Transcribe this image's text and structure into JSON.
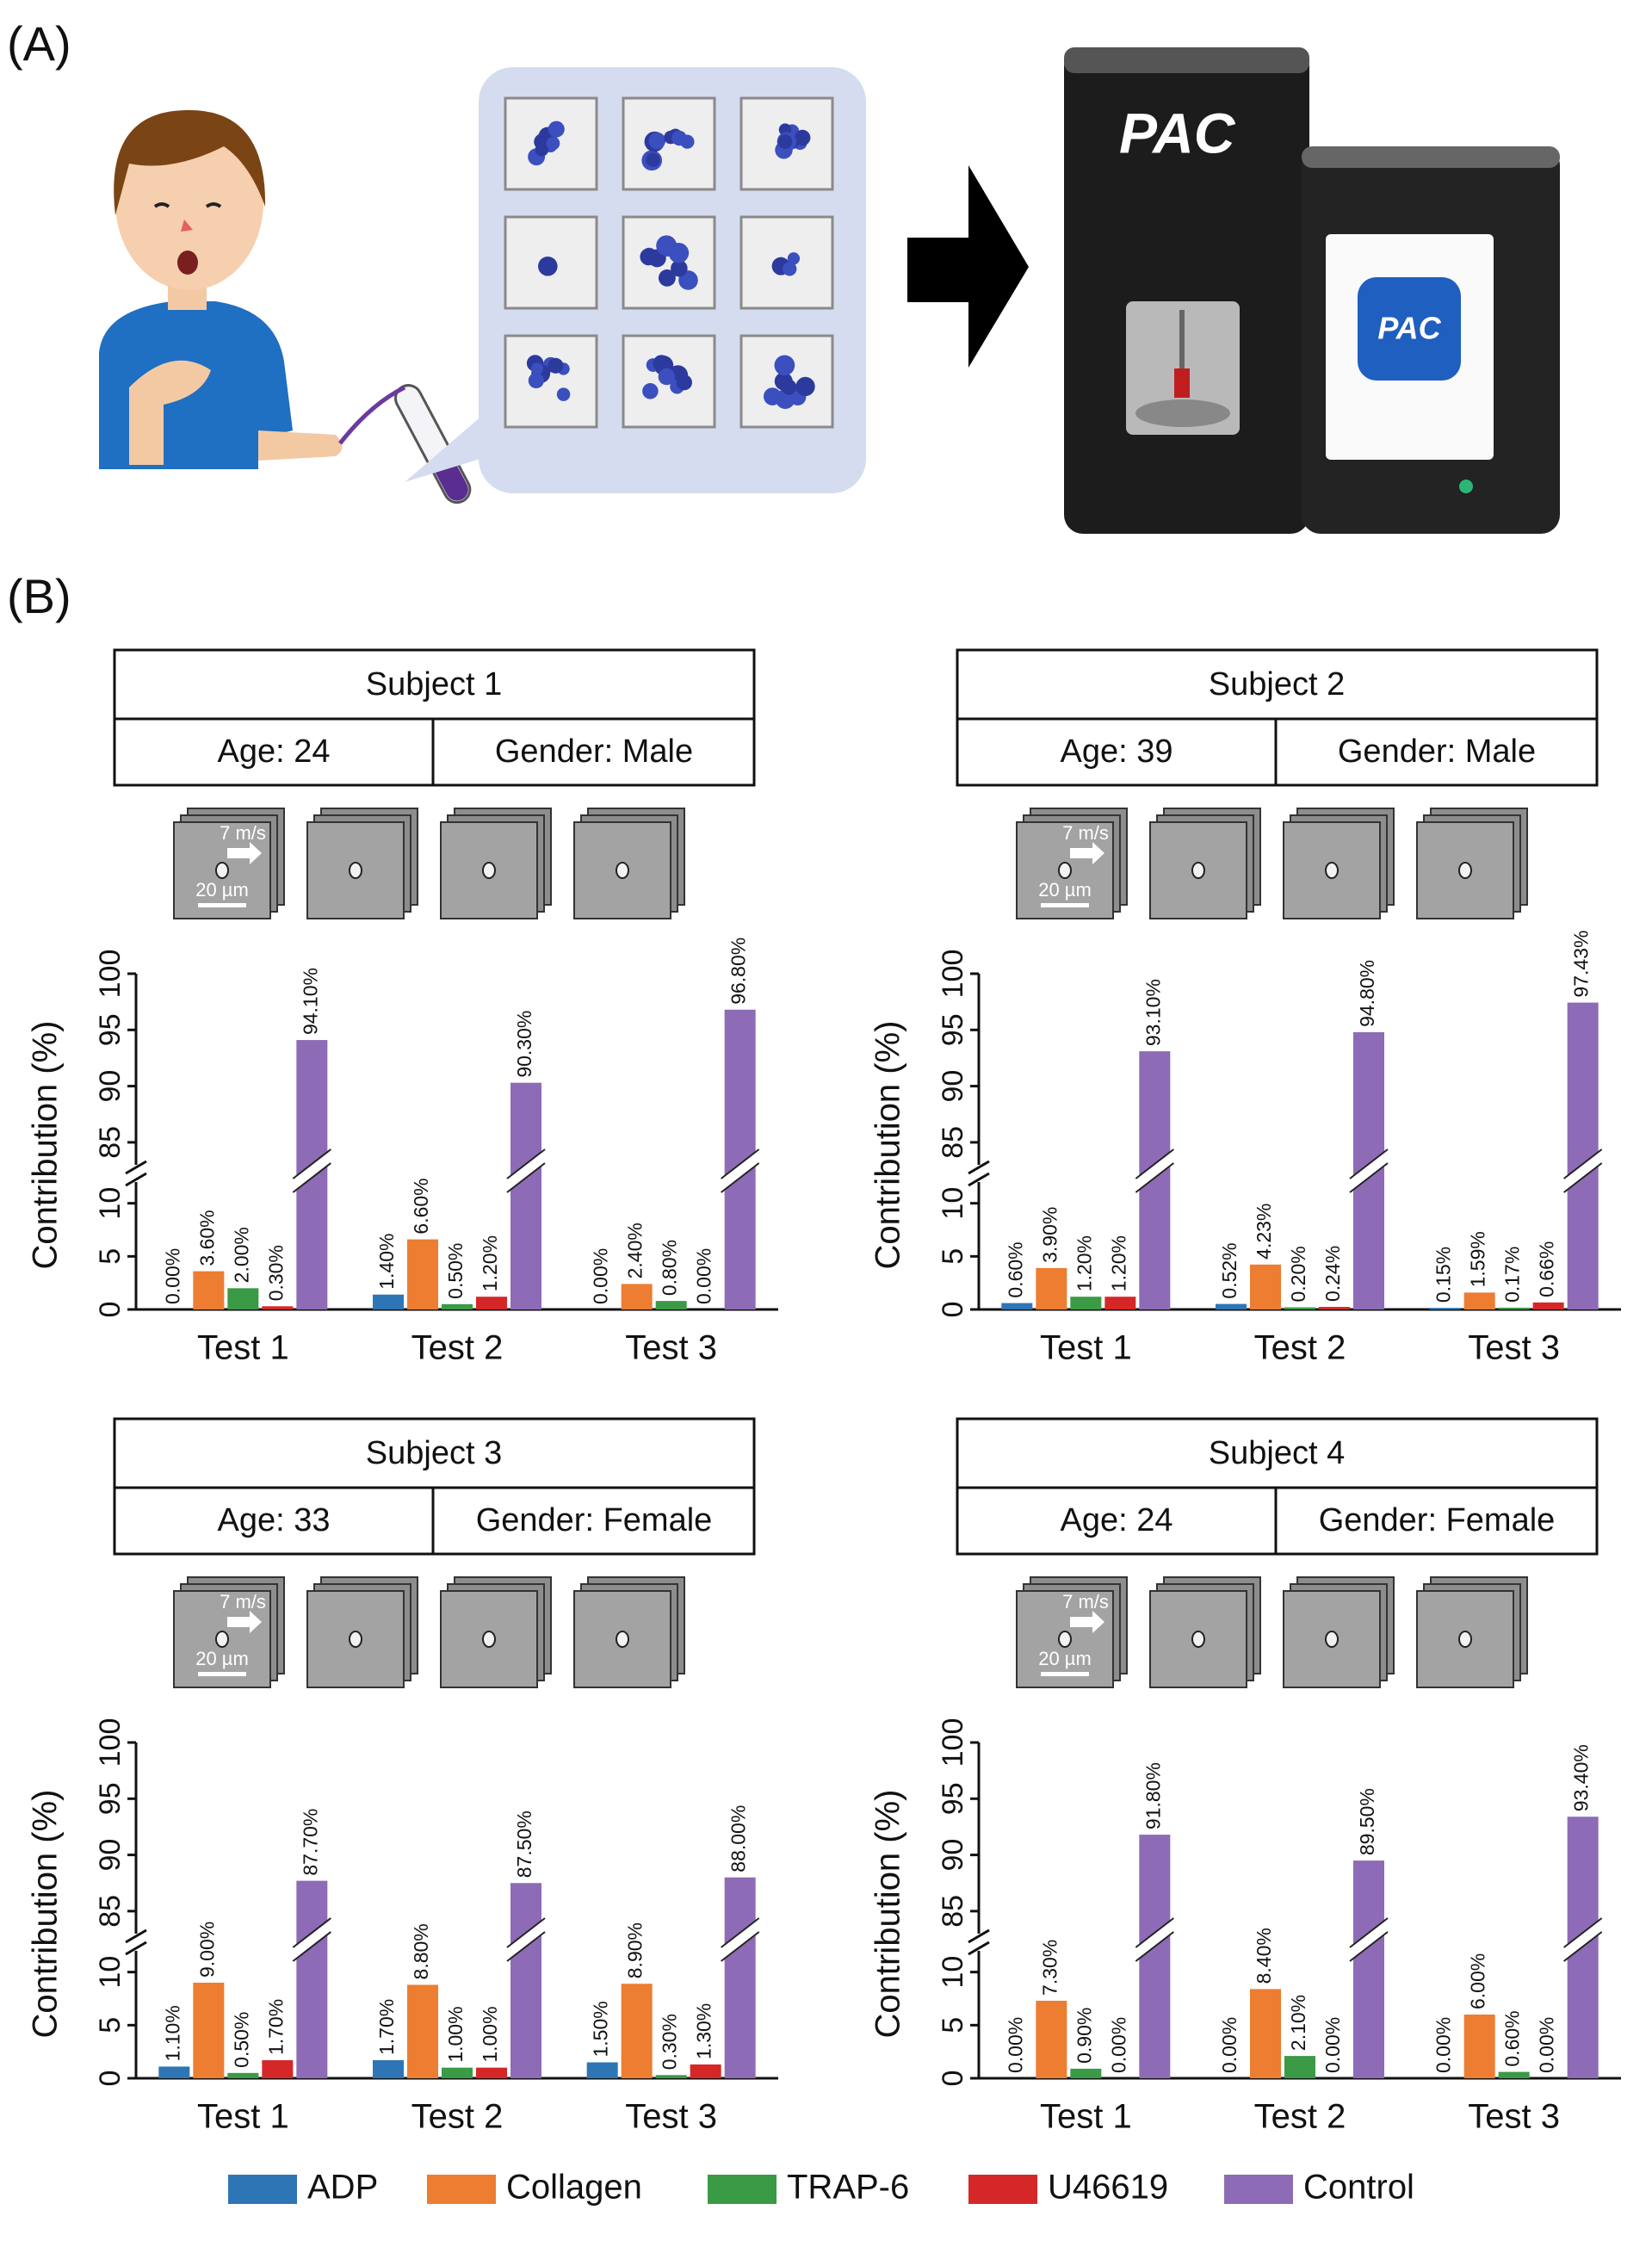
{
  "panel_labels": {
    "a": "(A)",
    "b": "(B)"
  },
  "illustration": {
    "logo": "PAC"
  },
  "legend": "bottom",
  "chart_data": [
    {
      "type": "bar",
      "title": "Subject 1",
      "age": "Age: 24",
      "gender": "Gender: Male",
      "speed_label": "7 m/s",
      "scale_label": "20 µm",
      "y_label": "Contribution (%)",
      "categories": [
        "Test 1",
        "Test 2",
        "Test 3"
      ],
      "broken_axis": true,
      "ylim": [
        0,
        12
      ],
      "yticks": [
        0,
        5,
        10
      ],
      "ylim_upper": [
        83,
        100
      ],
      "yticks_upper": [
        85,
        90,
        95,
        100
      ],
      "series": [
        {
          "name": "ADP",
          "color": "#2e75b6",
          "values": [
            0,
            1.4,
            0
          ],
          "value_labels": [
            "0.00%",
            "1.40%",
            "0.00%"
          ]
        },
        {
          "name": "Collagen",
          "color": "#ed7d31",
          "values": [
            3.6,
            6.6,
            2.4
          ],
          "value_labels": [
            "3.60%",
            "6.60%",
            "2.40%"
          ]
        },
        {
          "name": "TRAP-6",
          "color": "#3a9a45",
          "values": [
            2.0,
            0.5,
            0.8
          ],
          "value_labels": [
            "2.00%",
            "0.50%",
            "0.80%"
          ]
        },
        {
          "name": "U46619",
          "color": "#d62728",
          "values": [
            0.3,
            1.2,
            0
          ],
          "value_labels": [
            "0.30%",
            "1.20%",
            "0.00%"
          ]
        },
        {
          "name": "Control",
          "color": "#8e6bb6",
          "values": [
            94.1,
            90.3,
            96.8
          ],
          "value_labels": [
            "94.10%",
            "90.30%",
            "96.80%"
          ]
        }
      ]
    },
    {
      "type": "bar",
      "title": "Subject 2",
      "age": "Age: 39",
      "gender": "Gender: Male",
      "speed_label": "7 m/s",
      "scale_label": "20 µm",
      "y_label": "Contribution (%)",
      "categories": [
        "Test 1",
        "Test 2",
        "Test 3"
      ],
      "broken_axis": true,
      "ylim": [
        0,
        12
      ],
      "yticks": [
        0,
        5,
        10
      ],
      "ylim_upper": [
        83,
        100
      ],
      "yticks_upper": [
        85,
        90,
        95,
        100
      ],
      "series": [
        {
          "name": "ADP",
          "color": "#2e75b6",
          "values": [
            0.6,
            0.52,
            0.15
          ],
          "value_labels": [
            "0.60%",
            "0.52%",
            "0.15%"
          ]
        },
        {
          "name": "Collagen",
          "color": "#ed7d31",
          "values": [
            3.9,
            4.23,
            1.59
          ],
          "value_labels": [
            "3.90%",
            "4.23%",
            "1.59%"
          ]
        },
        {
          "name": "TRAP-6",
          "color": "#3a9a45",
          "values": [
            1.2,
            0.2,
            0.17
          ],
          "value_labels": [
            "1.20%",
            "0.20%",
            "0.17%"
          ]
        },
        {
          "name": "U46619",
          "color": "#d62728",
          "values": [
            1.2,
            0.24,
            0.66
          ],
          "value_labels": [
            "1.20%",
            "0.24%",
            "0.66%"
          ]
        },
        {
          "name": "Control",
          "color": "#8e6bb6",
          "values": [
            93.1,
            94.8,
            97.43
          ],
          "value_labels": [
            "93.10%",
            "94.80%",
            "97.43%"
          ]
        }
      ]
    },
    {
      "type": "bar",
      "title": "Subject 3",
      "age": "Age: 33",
      "gender": "Gender: Female",
      "speed_label": "7 m/s",
      "scale_label": "20 µm",
      "y_label": "Contribution (%)",
      "categories": [
        "Test 1",
        "Test 2",
        "Test 3"
      ],
      "broken_axis": true,
      "ylim": [
        0,
        12
      ],
      "yticks": [
        0,
        5,
        10
      ],
      "ylim_upper": [
        83,
        100
      ],
      "yticks_upper": [
        85,
        90,
        95,
        100
      ],
      "series": [
        {
          "name": "ADP",
          "color": "#2e75b6",
          "values": [
            1.1,
            1.7,
            1.5
          ],
          "value_labels": [
            "1.10%",
            "1.70%",
            "1.50%"
          ]
        },
        {
          "name": "Collagen",
          "color": "#ed7d31",
          "values": [
            9.0,
            8.8,
            8.9
          ],
          "value_labels": [
            "9.00%",
            "8.80%",
            "8.90%"
          ]
        },
        {
          "name": "TRAP-6",
          "color": "#3a9a45",
          "values": [
            0.5,
            1.0,
            0.3
          ],
          "value_labels": [
            "0.50%",
            "1.00%",
            "0.30%"
          ]
        },
        {
          "name": "U46619",
          "color": "#d62728",
          "values": [
            1.7,
            1.0,
            1.3
          ],
          "value_labels": [
            "1.70%",
            "1.00%",
            "1.30%"
          ]
        },
        {
          "name": "Control",
          "color": "#8e6bb6",
          "values": [
            87.7,
            87.5,
            88.0
          ],
          "value_labels": [
            "87.70%",
            "87.50%",
            "88.00%"
          ]
        }
      ]
    },
    {
      "type": "bar",
      "title": "Subject 4",
      "age": "Age: 24",
      "gender": "Gender: Female",
      "speed_label": "7 m/s",
      "scale_label": "20 µm",
      "y_label": "Contribution (%)",
      "categories": [
        "Test 1",
        "Test 2",
        "Test 3"
      ],
      "broken_axis": true,
      "ylim": [
        0,
        12
      ],
      "yticks": [
        0,
        5,
        10
      ],
      "ylim_upper": [
        83,
        100
      ],
      "yticks_upper": [
        85,
        90,
        95,
        100
      ],
      "series": [
        {
          "name": "ADP",
          "color": "#2e75b6",
          "values": [
            0,
            0,
            0
          ],
          "value_labels": [
            "0.00%",
            "0.00%",
            "0.00%"
          ]
        },
        {
          "name": "Collagen",
          "color": "#ed7d31",
          "values": [
            7.3,
            8.4,
            6.0
          ],
          "value_labels": [
            "7.30%",
            "8.40%",
            "6.00%"
          ]
        },
        {
          "name": "TRAP-6",
          "color": "#3a9a45",
          "values": [
            0.9,
            2.1,
            0.6
          ],
          "value_labels": [
            "0.90%",
            "2.10%",
            "0.60%"
          ]
        },
        {
          "name": "U46619",
          "color": "#d62728",
          "values": [
            0,
            0,
            0
          ],
          "value_labels": [
            "0.00%",
            "0.00%",
            "0.00%"
          ]
        },
        {
          "name": "Control",
          "color": "#8e6bb6",
          "values": [
            91.8,
            89.5,
            93.4
          ],
          "value_labels": [
            "91.80%",
            "89.50%",
            "93.40%"
          ]
        }
      ]
    }
  ]
}
